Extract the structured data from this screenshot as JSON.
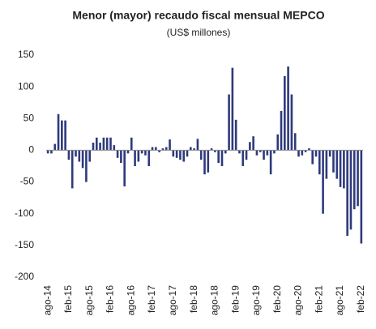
{
  "chart_data": {
    "type": "bar",
    "title": "Menor (mayor) recaudo fiscal mensual MEPCO",
    "subtitle": "(US$ millones)",
    "categories": [
      "ago-14",
      null,
      null,
      null,
      null,
      null,
      "feb-15",
      null,
      null,
      null,
      null,
      null,
      "ago-15",
      null,
      null,
      null,
      null,
      null,
      "feb-16",
      null,
      null,
      null,
      null,
      null,
      "ago-16",
      null,
      null,
      null,
      null,
      null,
      "feb-17",
      null,
      null,
      null,
      null,
      null,
      "ago-17",
      null,
      null,
      null,
      null,
      null,
      "feb-18",
      null,
      null,
      null,
      null,
      null,
      "ago-18",
      null,
      null,
      null,
      null,
      null,
      "feb-19",
      null,
      null,
      null,
      null,
      null,
      "ago-19",
      null,
      null,
      null,
      null,
      null,
      "feb-20",
      null,
      null,
      null,
      null,
      null,
      "ago-20",
      null,
      null,
      null,
      null,
      null,
      "feb-21",
      null,
      null,
      null,
      null,
      null,
      "ago-21",
      null,
      null,
      null,
      null,
      null,
      "feb-22"
    ],
    "values": [
      -5,
      -5,
      10,
      57,
      47,
      47,
      -15,
      -60,
      -10,
      -18,
      -28,
      -50,
      -18,
      12,
      20,
      12,
      20,
      20,
      20,
      8,
      -12,
      -20,
      -57,
      -5,
      20,
      -25,
      -18,
      -5,
      -8,
      -25,
      5,
      5,
      -3,
      3,
      5,
      17,
      -10,
      -12,
      -15,
      -18,
      -10,
      5,
      3,
      18,
      -15,
      -38,
      -35,
      3,
      -3,
      -20,
      -25,
      -5,
      88,
      130,
      48,
      -5,
      -25,
      -15,
      13,
      22,
      -8,
      -3,
      -15,
      -8,
      -38,
      -5,
      25,
      62,
      117,
      132,
      88,
      27,
      -10,
      -8,
      -3,
      3,
      -22,
      -10,
      -38,
      -100,
      -45,
      -10,
      -35,
      -45,
      -58,
      -60,
      -135,
      -125,
      -93,
      -88,
      -147
    ],
    "color": "#2e3a7c",
    "ylim": [
      -200,
      150
    ],
    "yticks": [
      -200,
      -150,
      -100,
      -50,
      0,
      50,
      100,
      150
    ]
  }
}
